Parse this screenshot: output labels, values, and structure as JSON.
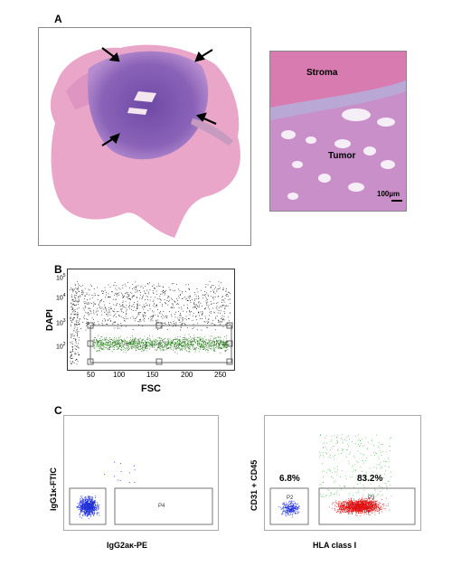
{
  "panels": {
    "a": {
      "letter": "A",
      "inset_labels": {
        "stroma": "Stroma",
        "tumor": "Tumor",
        "scale_bar": "100µm"
      }
    },
    "b": {
      "letter": "B",
      "xlabel": "FSC",
      "ylabel": "DAPI",
      "xticks": [
        "50",
        "100",
        "150",
        "200",
        "250"
      ],
      "yticks": [
        "10",
        "10",
        "10",
        "10"
      ],
      "yexp": [
        "2",
        "3",
        "4",
        "5"
      ]
    },
    "c": {
      "letter": "C",
      "left": {
        "xlabel": "IgG2aκ-PE",
        "ylabel": "IgG1κ-FTIC",
        "gate_label": "P4"
      },
      "right": {
        "xlabel": "HLA class I",
        "ylabel": "CD31 + CD45",
        "pct_left": "6.8%",
        "pct_right": "83.2%",
        "gate_left": "P2",
        "gate_right": "P3"
      }
    }
  },
  "colors": {
    "he_pink": "#e9a6c9",
    "he_purple": "#8a63b8",
    "black_dots": "#111111",
    "green_dots": "#2a7a1e",
    "blue_dots": "#1f2fd8",
    "red_dots": "#e01010",
    "lightgreen_dots": "#4cb84c"
  }
}
